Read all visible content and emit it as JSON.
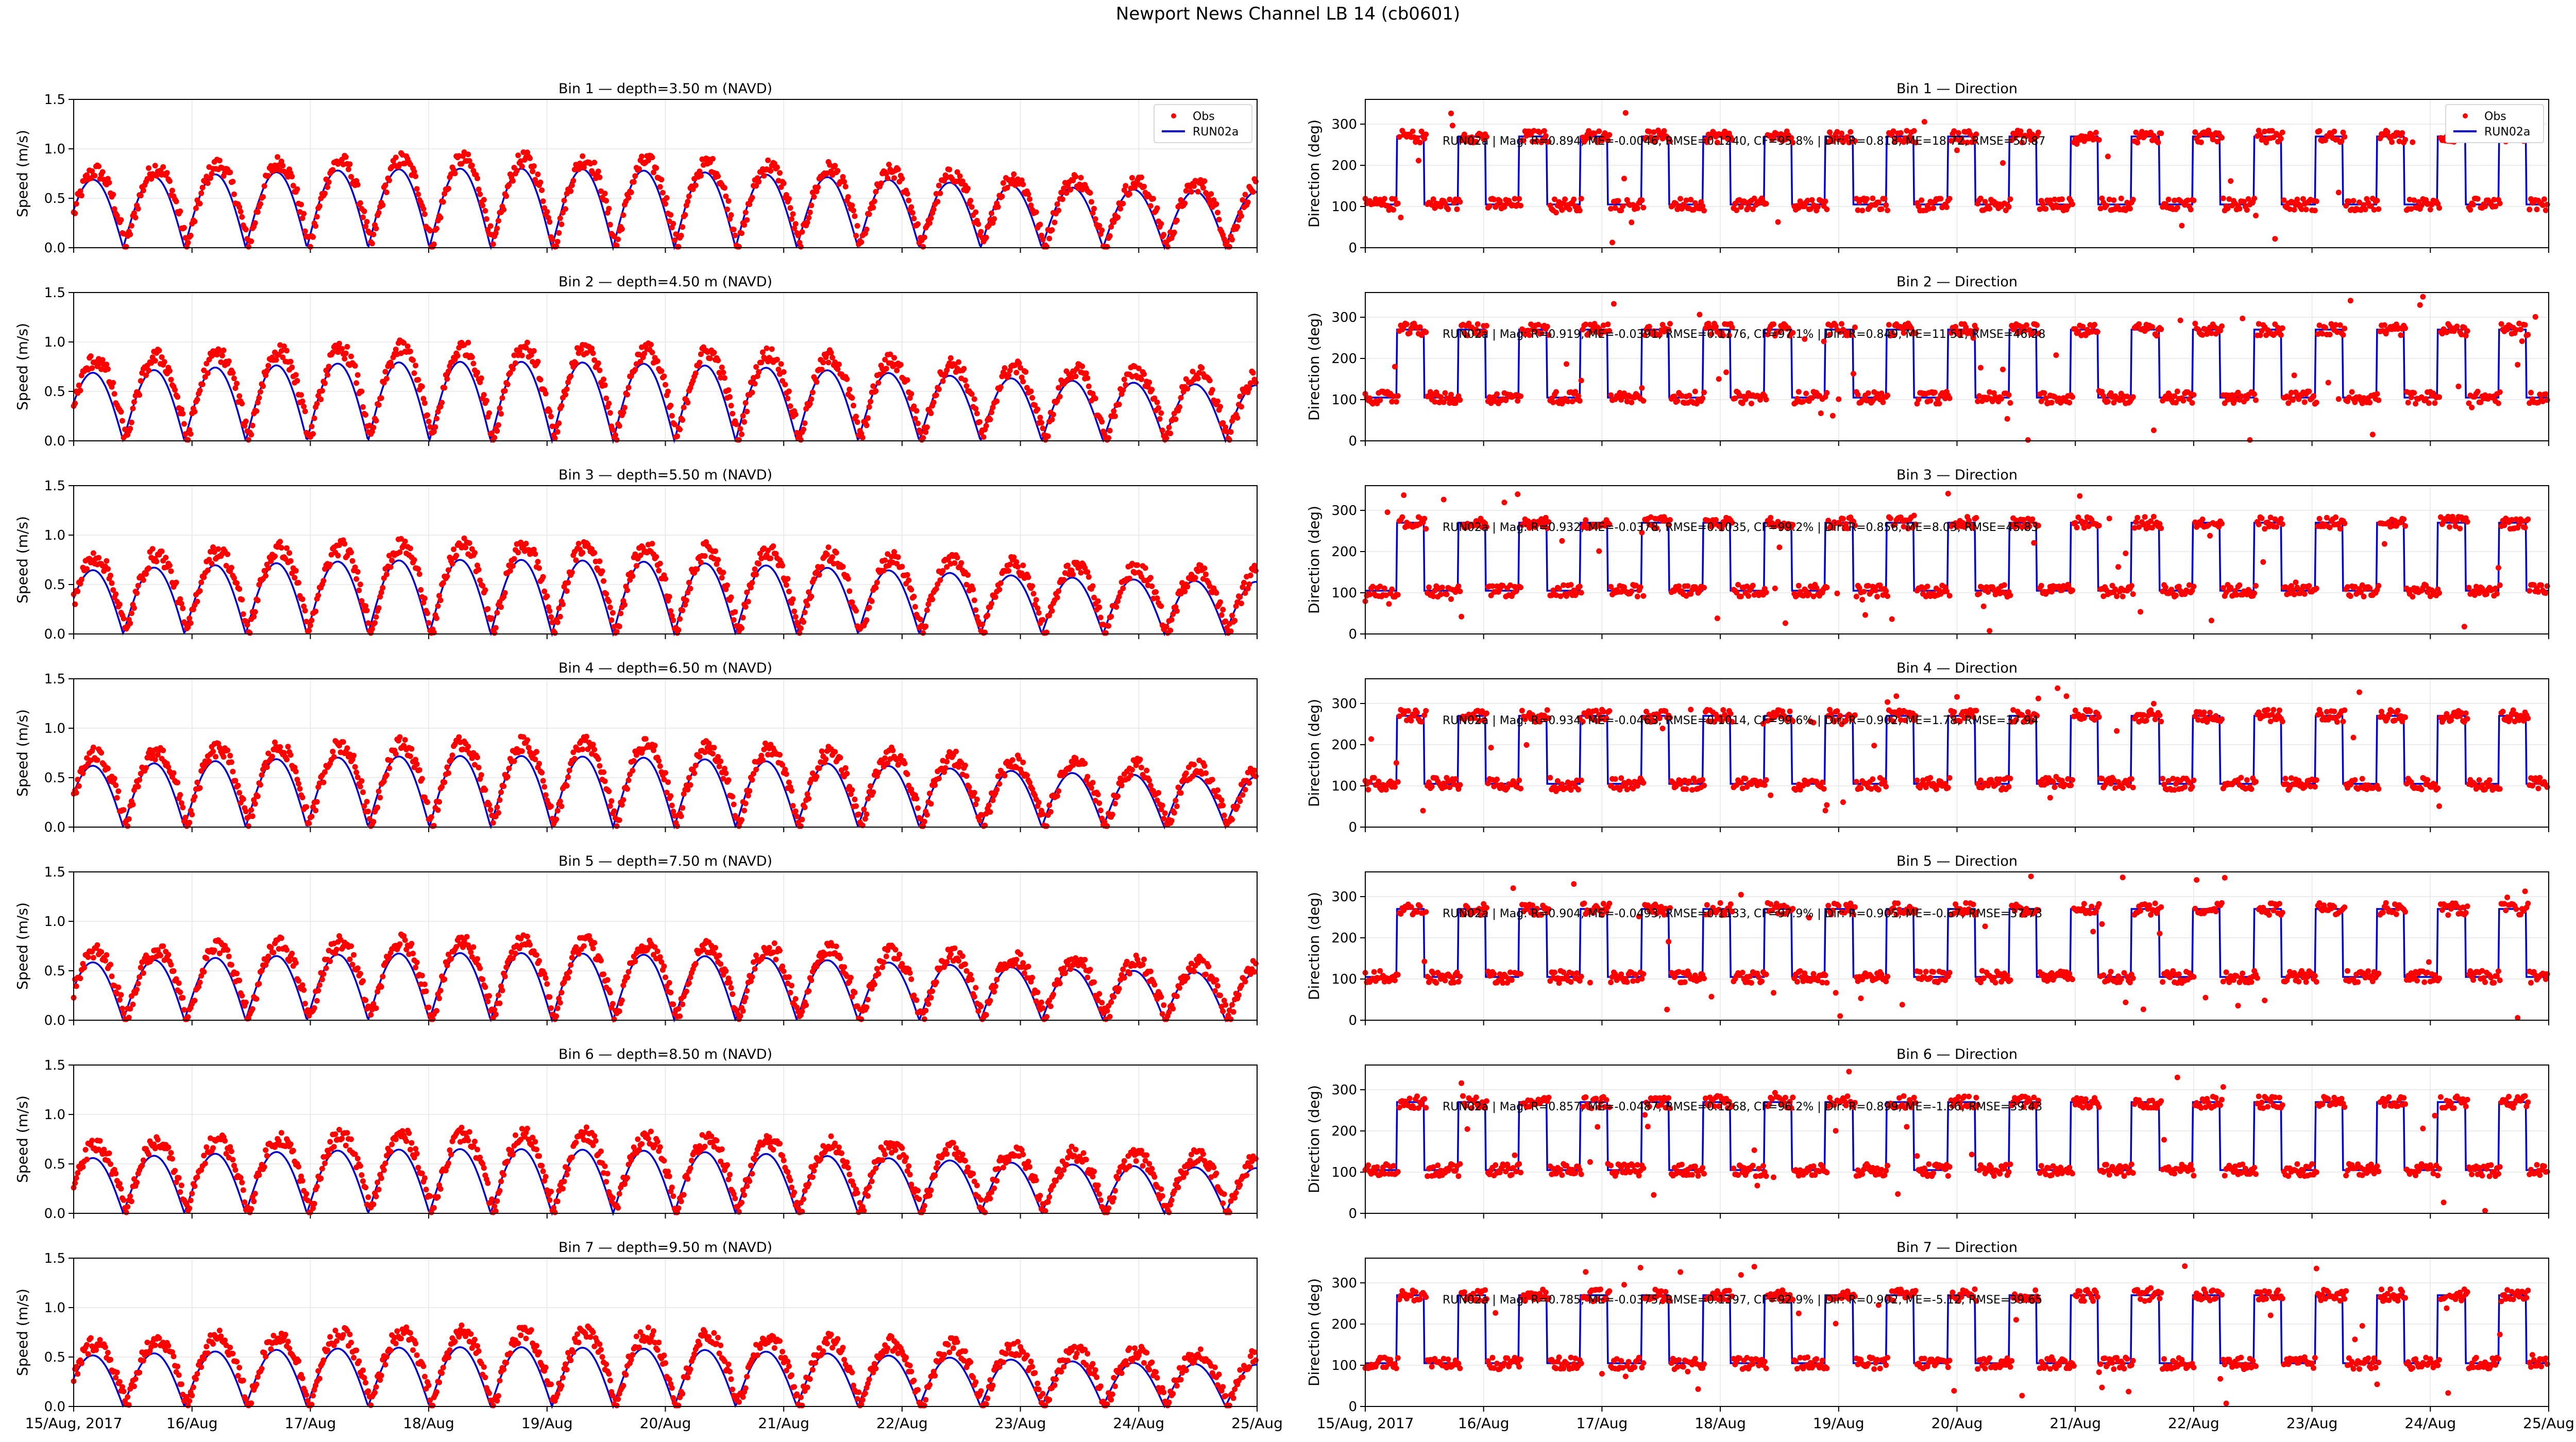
{
  "figure": {
    "title": "Newport News Channel LB 14 (cb0601)"
  },
  "colors": {
    "obs": "#ff0000",
    "model": "#0000cc",
    "grid": "#e6e6e6"
  },
  "legend": {
    "obs_label": "Obs",
    "model_label": "RUN02a"
  },
  "x_axis": {
    "ticks": [
      {
        "day": 0,
        "label": "15/Aug, 2017"
      },
      {
        "day": 1,
        "label": "16/Aug"
      },
      {
        "day": 2,
        "label": "17/Aug"
      },
      {
        "day": 3,
        "label": "18/Aug"
      },
      {
        "day": 4,
        "label": "19/Aug"
      },
      {
        "day": 5,
        "label": "20/Aug"
      },
      {
        "day": 6,
        "label": "21/Aug"
      },
      {
        "day": 7,
        "label": "22/Aug"
      },
      {
        "day": 8,
        "label": "23/Aug"
      },
      {
        "day": 9,
        "label": "24/Aug"
      },
      {
        "day": 10,
        "label": "25/Aug"
      }
    ]
  },
  "speed_axis": {
    "ylabel": "Speed (m/s)",
    "ylim": [
      0,
      1.5
    ],
    "ticks": [
      "0.0",
      "0.5",
      "1.0",
      "1.5"
    ]
  },
  "dir_axis": {
    "ylabel": "Direction (deg)",
    "ylim": [
      0,
      360
    ],
    "ticks": [
      "0",
      "100",
      "200",
      "300"
    ]
  },
  "chart_data": {
    "type": "scatter",
    "description_series": [
      "Obs (points)",
      "RUN02a (line)"
    ],
    "bins": [
      {
        "speed_title": "Bin 1 — depth=3.50 m (NAVD)",
        "dir_title": "Bin 1 — Direction",
        "stats": "RUN02a | Mag: R=0.894, ME=-0.0046, RMSE=0.1240, CF=95.8% | Dir: R=0.818, ME=18.72, RMSE=50.87",
        "speed_obs_peak": 0.9,
        "speed_model_peak": 0.8
      },
      {
        "speed_title": "Bin 2 — depth=4.50 m (NAVD)",
        "dir_title": "Bin 2 — Direction",
        "stats": "RUN02a | Mag: R=0.919, ME=-0.0391, RMSE=0.1176, CF=97.1% | Dir: R=0.849, ME=11.51, RMSE=46.28",
        "speed_obs_peak": 0.95,
        "speed_model_peak": 0.8
      },
      {
        "speed_title": "Bin 3 — depth=5.50 m (NAVD)",
        "dir_title": "Bin 3 — Direction",
        "stats": "RUN02a | Mag: R=0.932, ME=-0.0378, RMSE=0.1035, CF=99.2% | Dir: R=0.856, ME=8.03, RMSE=45.83",
        "speed_obs_peak": 0.9,
        "speed_model_peak": 0.75
      },
      {
        "speed_title": "Bin 4 — depth=6.50 m (NAVD)",
        "dir_title": "Bin 4 — Direction",
        "stats": "RUN02a | Mag: R=0.934, ME=-0.0463, RMSE=0.1014, CF=99.6% | Dir: R=0.902, ME=1.78, RMSE=37.94",
        "speed_obs_peak": 0.85,
        "speed_model_peak": 0.72
      },
      {
        "speed_title": "Bin 5 — depth=7.50 m (NAVD)",
        "dir_title": "Bin 5 — Direction",
        "stats": "RUN02a | Mag: R=0.904, ME=-0.0493, RMSE=0.1133, CF=97.9% | Dir: R=0.905, ME=-0.67, RMSE=37.73",
        "speed_obs_peak": 0.8,
        "speed_model_peak": 0.68
      },
      {
        "speed_title": "Bin 6 — depth=8.50 m (NAVD)",
        "dir_title": "Bin 6 — Direction",
        "stats": "RUN02a | Mag: R=0.857, ME=-0.0487, RMSE=0.1268, CF=96.2% | Dir: R=0.899, ME=-1.66, RMSE=39.43",
        "speed_obs_peak": 0.8,
        "speed_model_peak": 0.65
      },
      {
        "speed_title": "Bin 7 — depth=9.50 m (NAVD)",
        "dir_title": "Bin 7 — Direction",
        "stats": "RUN02a | Mag: R=0.785, ME=-0.0375, RMSE=0.1397, CF=92.9% | Dir: R=0.902, ME=-5.12, RMSE=39.65",
        "speed_obs_peak": 0.75,
        "speed_model_peak": 0.6
      }
    ],
    "x_range_days": [
      0,
      10
    ],
    "tidal_period_hours": 12.42,
    "direction_states_deg": [
      105,
      270
    ]
  }
}
